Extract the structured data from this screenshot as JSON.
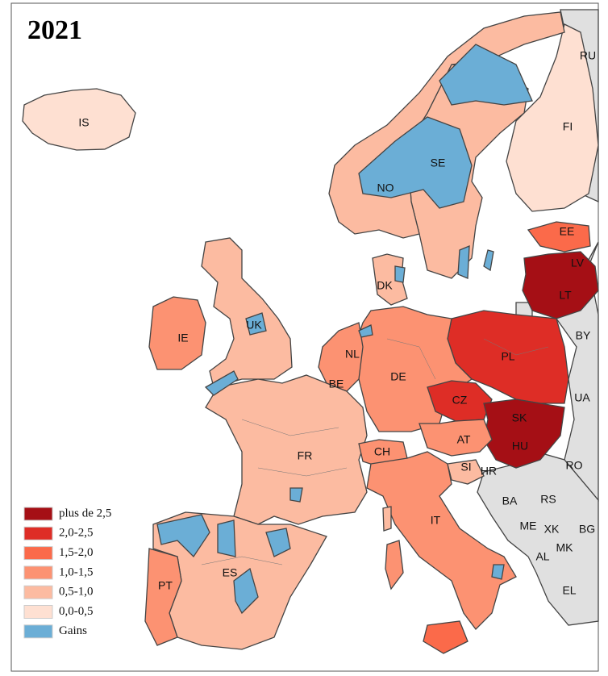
{
  "title": "2021",
  "colors": {
    "plus_de_2_5": "#a50f15",
    "2_0_2_5": "#de2d26",
    "1_5_2_0": "#fb6a4a",
    "1_0_1_5": "#fc9272",
    "0_5_1_0": "#fcbba1",
    "0_0_0_5": "#fee0d2",
    "gains": "#6baed6",
    "non_covered": "#e0e0e0"
  },
  "legend": [
    {
      "label": "plus de 2,5",
      "color": "#a50f15"
    },
    {
      "label": "2,0-2,5",
      "color": "#de2d26"
    },
    {
      "label": "1,5-2,0",
      "color": "#fb6a4a"
    },
    {
      "label": "1,0-1,5",
      "color": "#fc9272"
    },
    {
      "label": "0,5-1,0",
      "color": "#fcbba1"
    },
    {
      "label": "0,0-0,5",
      "color": "#fee0d2"
    },
    {
      "label": "Gains",
      "color": "#6baed6"
    }
  ],
  "countries": {
    "RU": "RU",
    "IS": "IS",
    "FI": "FI",
    "SE": "SE",
    "NO": "NO",
    "EE": "EE",
    "LV": "LV",
    "LT": "LT",
    "DK": "DK",
    "BY": "BY",
    "UK": "UK",
    "IE": "IE",
    "NL": "NL",
    "PL": "PL",
    "DE": "DE",
    "BE": "BE",
    "CZ": "CZ",
    "UA": "UA",
    "SK": "SK",
    "AT": "AT",
    "FR": "FR",
    "CH": "CH",
    "HU": "HU",
    "SI": "SI",
    "HR": "HR",
    "RO": "RO",
    "BA": "BA",
    "RS": "RS",
    "ME": "ME",
    "XK": "XK",
    "BG": "BG",
    "MK": "MK",
    "AL": "AL",
    "IT": "IT",
    "ES": "ES",
    "PT": "PT",
    "EL": "EL"
  }
}
